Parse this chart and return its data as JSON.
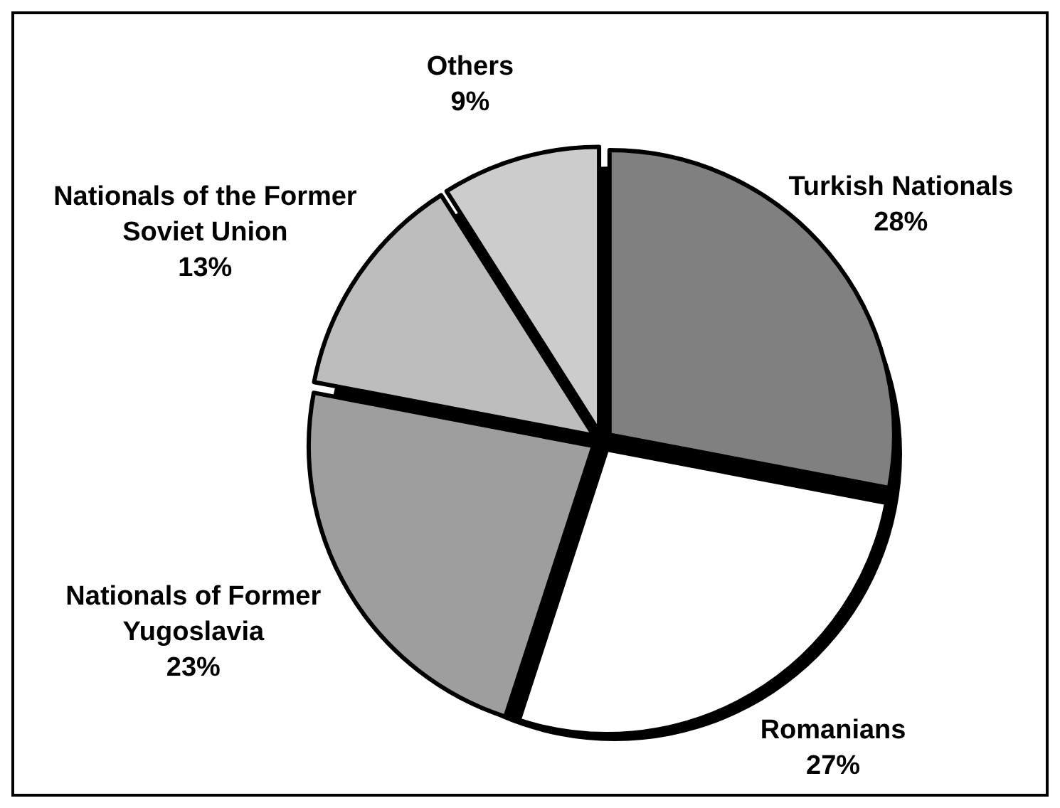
{
  "chart_data": {
    "type": "pie",
    "categories": [
      "Turkish Nationals",
      "Romanians",
      "Nationals of Former Yugoslavia",
      "Nationals of the Former Soviet Union",
      "Others"
    ],
    "values": [
      28,
      27,
      23,
      13,
      9
    ],
    "value_labels": [
      "28%",
      "27%",
      "23%",
      "13%",
      "9%"
    ],
    "colors": [
      "#808080",
      "#ffffff",
      "#9e9e9e",
      "#bdbdbd",
      "#cccccc"
    ]
  }
}
